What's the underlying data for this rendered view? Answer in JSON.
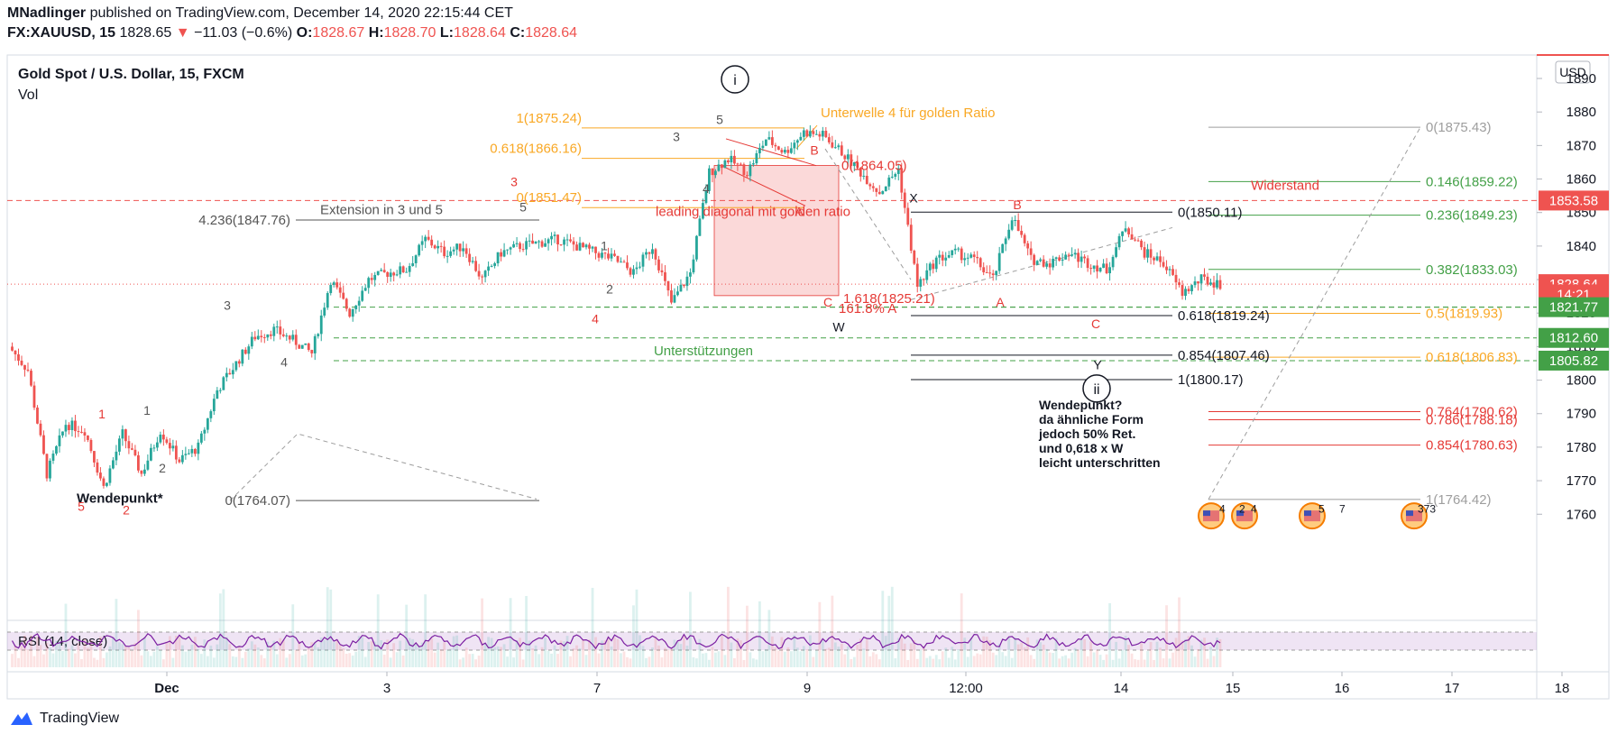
{
  "header": {
    "author": "MNadlinger",
    "published": "published on TradingView.com, December 14, 2020 22:15:44 CET",
    "symbol": "FX:XAUUSD, 15",
    "last": "1828.65",
    "change_arrow": "▼",
    "change": "−11.03 (−0.6%)",
    "o_label": "O:",
    "o": "1828.67",
    "h_label": "H:",
    "h": "1828.70",
    "l_label": "L:",
    "l": "1828.64",
    "c_label": "C:",
    "c": "1828.64"
  },
  "legend": {
    "title": "Gold Spot / U.S. Dollar, 15, FXCM",
    "vol": "Vol",
    "rsi": "RSI (14, close)"
  },
  "currency_button": "USD",
  "footer": {
    "brand": "TradingView"
  },
  "colors": {
    "up": "#26a69a",
    "down": "#ef5350",
    "fib_orange": "#f9a825",
    "fib_green": "#43a047",
    "fib_red": "#e53935",
    "rsi": "#7b1fa2",
    "price_tag": "#ef5350",
    "support_tag": "#43a047"
  },
  "chart_data": {
    "type": "candlestick",
    "title": "Gold Spot / U.S. Dollar, 15, FXCM",
    "y_axis": {
      "ylim": [
        1752,
        1897
      ],
      "ticks": [
        1890,
        1880,
        1870,
        1860,
        1850,
        1840,
        1830,
        1820,
        1810,
        1800,
        1790,
        1780,
        1770,
        1760
      ]
    },
    "x_axis": {
      "ticks": [
        "Dec",
        "3",
        "7",
        "9",
        "12:00",
        "14",
        "15",
        "16",
        "17",
        "18"
      ]
    },
    "price_path": [
      [
        "Nov 27 a",
        1810
      ],
      [
        "Nov 27 b",
        1803
      ],
      [
        "Nov 27 c",
        1772
      ],
      [
        "Nov 27 d",
        1787
      ],
      [
        "Nov 27 e",
        1785
      ],
      [
        "Nov 30 a",
        1768
      ],
      [
        "Nov 30 b",
        1784
      ],
      [
        "Nov 30 c",
        1772
      ],
      [
        "Nov 30 d",
        1785
      ],
      [
        "Nov 30 e",
        1776
      ],
      [
        "Dec 1 a",
        1780
      ],
      [
        "Dec 1 b",
        1797
      ],
      [
        "Dec 1 c",
        1805
      ],
      [
        "Dec 1 d",
        1813
      ],
      [
        "Dec 1 e",
        1815
      ],
      [
        "Dec 2 a",
        1812
      ],
      [
        "Dec 2 b",
        1808
      ],
      [
        "Dec 2 c",
        1830
      ],
      [
        "Dec 2 d",
        1820
      ],
      [
        "Dec 2 e",
        1830
      ],
      [
        "Dec 3 a",
        1832
      ],
      [
        "Dec 3 b",
        1833
      ],
      [
        "Dec 3 c",
        1842
      ],
      [
        "Dec 3 d",
        1838
      ],
      [
        "Dec 3 e",
        1840
      ],
      [
        "Dec 4 a",
        1830
      ],
      [
        "Dec 4 b",
        1838
      ],
      [
        "Dec 4 c",
        1840
      ],
      [
        "Dec 4 d",
        1841
      ],
      [
        "Dec 4 e",
        1842
      ],
      [
        "Dec 7 a",
        1840
      ],
      [
        "Dec 7 b",
        1838
      ],
      [
        "Dec 7 c",
        1836
      ],
      [
        "Dec 7 d",
        1832
      ],
      [
        "Dec 7 e",
        1840
      ],
      [
        "Dec 8 a",
        1823
      ],
      [
        "Dec 8 b",
        1832
      ],
      [
        "Dec 8 c",
        1862
      ],
      [
        "Dec 8 d",
        1866
      ],
      [
        "Dec 8 e",
        1862
      ],
      [
        "Dec 9 a",
        1872
      ],
      [
        "Dec 9 b",
        1868
      ],
      [
        "Dec 9 c",
        1874
      ],
      [
        "Dec 9 d",
        1873
      ],
      [
        "Dec 9 e",
        1868
      ],
      [
        "Dec 10 a",
        1862
      ],
      [
        "Dec 10 b",
        1856
      ],
      [
        "Dec 10 c",
        1863
      ],
      [
        "Dec 10 d",
        1828
      ],
      [
        "Dec 10 e",
        1836
      ],
      [
        "Dec 11 a",
        1838
      ],
      [
        "Dec 11 b",
        1836
      ],
      [
        "Dec 11 c",
        1830
      ],
      [
        "Dec 11 d",
        1849
      ],
      [
        "Dec 11 e",
        1836
      ],
      [
        "Dec 13 a",
        1835
      ],
      [
        "Dec 13 b",
        1838
      ],
      [
        "Dec 13 c",
        1835
      ],
      [
        "Dec 14 a",
        1833
      ],
      [
        "Dec 14 b",
        1846
      ],
      [
        "Dec 14 c",
        1838
      ],
      [
        "Dec 14 d",
        1835
      ],
      [
        "Dec 14 e",
        1826
      ],
      [
        "Dec 14 f",
        1830
      ],
      [
        "Dec 14 g",
        1828.64
      ]
    ],
    "price_tags": [
      {
        "label": "1853.58",
        "value": 1853.58,
        "color": "#ef5350"
      },
      {
        "label": "1828.64",
        "value": 1828.64,
        "color": "#ef5350"
      },
      {
        "label": "14:21",
        "value": 1825.6,
        "color": "#ef5350"
      },
      {
        "label": "1821.77",
        "value": 1821.77,
        "color": "#43a047"
      },
      {
        "label": "1812.60",
        "value": 1812.6,
        "color": "#43a047"
      },
      {
        "label": "1805.82",
        "value": 1805.82,
        "color": "#43a047"
      }
    ],
    "fib_left": [
      {
        "label": "1(1875.24)",
        "value": 1875.24,
        "color": "#f9a825"
      },
      {
        "label": "0.618(1866.16)",
        "value": 1866.16,
        "color": "#f9a825"
      },
      {
        "label": "0(1851.47)",
        "value": 1851.47,
        "color": "#f9a825"
      }
    ],
    "fib_extension": [
      {
        "label": "4.236(1847.76)",
        "value": 1847.76
      },
      {
        "label": "0(1764.07)",
        "value": 1764.07
      }
    ],
    "fib_mid": [
      {
        "label": "0(1850.11)",
        "value": 1850.11
      },
      {
        "label": "0.618(1819.24)",
        "value": 1819.24
      },
      {
        "label": "0.854(1807.46)",
        "value": 1807.46
      },
      {
        "label": "1(1800.17)",
        "value": 1800.17
      }
    ],
    "fib_right": [
      {
        "label": "0(1875.43)",
        "value": 1875.43,
        "color": "#9e9e9e"
      },
      {
        "label": "0.146(1859.22)",
        "value": 1859.22,
        "color": "#43a047"
      },
      {
        "label": "0.236(1849.23)",
        "value": 1849.23,
        "color": "#43a047"
      },
      {
        "label": "0.382(1833.03)",
        "value": 1833.03,
        "color": "#43a047"
      },
      {
        "label": "0.5(1819.93)",
        "value": 1819.93,
        "color": "#f9a825"
      },
      {
        "label": "0.618(1806.83)",
        "value": 1806.83,
        "color": "#f9a825"
      },
      {
        "label": "0.764(1790.62)",
        "value": 1790.62,
        "color": "#e53935"
      },
      {
        "label": "0.786(1788.18)",
        "value": 1788.18,
        "color": "#e53935"
      },
      {
        "label": "0.854(1780.63)",
        "value": 1780.63,
        "color": "#e53935"
      },
      {
        "label": "1(1764.42)",
        "value": 1764.42,
        "color": "#9e9e9e"
      }
    ],
    "support_lines": [
      1821.77,
      1812.6,
      1805.82
    ],
    "resistance_line": 1853.58,
    "annotations": {
      "extension": "Extension in 3 und 5",
      "subwave": "Unterwelle 4 für golden Ratio",
      "diagonal": "leading diagonal mit golden ratio",
      "ext1618": "1.618(1825.21)",
      "ext1618pct": "161.8% A",
      "fib0": "0(1864.05)",
      "support": "Unterstützungen",
      "resistance": "Widerstand",
      "wendepunkt1": "Wendepunkt*",
      "wendepunkt2": [
        "Wendepunkt?",
        "da ähnliche Form",
        "jedoch 50% Ret.",
        "und 0,618 x W",
        "leicht unterschritten"
      ],
      "circle_i": "i",
      "circle_ii": "ii",
      "wave_labels": [
        "1",
        "2",
        "3",
        "4",
        "5",
        "1",
        "2",
        "3",
        "4",
        "5",
        "1",
        "2",
        "3",
        "4",
        "5",
        "A",
        "B",
        "C",
        "W",
        "X",
        "Y",
        "A",
        "B",
        "C"
      ],
      "event_counts": [
        "4",
        "2",
        "4",
        "5",
        "7",
        "373"
      ]
    }
  }
}
